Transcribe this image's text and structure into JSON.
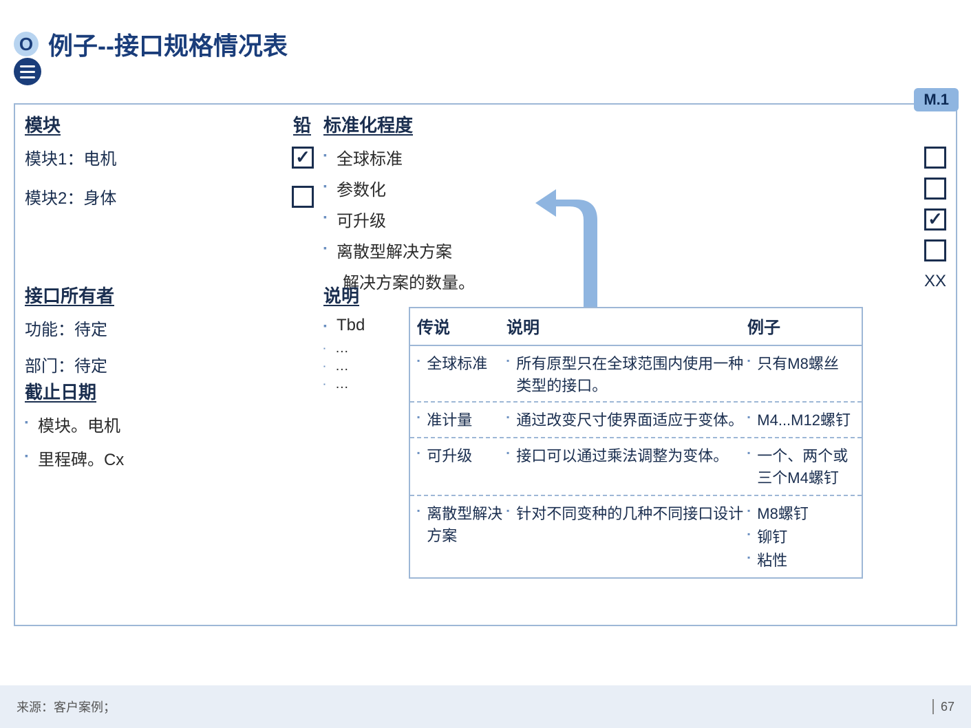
{
  "title": "例子--接口规格情况表",
  "badge_letter": "O",
  "tag": "M.1",
  "left": {
    "hdr_module": "模块",
    "hdr_lead": "铅",
    "modules": [
      {
        "label": "模块1：电机",
        "checked": true
      },
      {
        "label": "模块2：身体",
        "checked": false
      }
    ],
    "owner_hdr": "接口所有者",
    "owner_fn": "功能：待定",
    "owner_dept": "部门：待定",
    "deadline_hdr": "截止日期",
    "deadline_items": [
      "模块。电机",
      "里程碑。Cx"
    ]
  },
  "right": {
    "std_hdr": "标准化程度",
    "std_items": [
      {
        "label": "全球标准",
        "checked": false
      },
      {
        "label": "参数化",
        "checked": false
      },
      {
        "label": "可升级",
        "checked": true
      },
      {
        "label": "离散型解决方案",
        "checked": false
      }
    ],
    "std_extra_label": "解决方案的数量。",
    "std_extra_val": "XX",
    "desc_hdr": "说明",
    "desc_items": [
      "Tbd",
      "…",
      "…",
      "…"
    ]
  },
  "callout": {
    "h1": "传说",
    "h2": "说明",
    "h3": "例子",
    "rows": [
      {
        "t": "全球标准",
        "d": "所有原型只在全球范围内使用一种类型的接口。",
        "e": [
          "只有M8螺丝"
        ]
      },
      {
        "t": "准计量",
        "d": "通过改变尺寸使界面适应于变体。",
        "e": [
          "M4...M12螺钉"
        ]
      },
      {
        "t": "可升级",
        "d": "接口可以通过乘法调整为变体。",
        "e": [
          "一个、两个或三个M4螺钉"
        ]
      },
      {
        "t": "离散型解决方案",
        "d": "针对不同变种的几种不同接口设计",
        "e": [
          "M8螺钉",
          "铆钉",
          "粘性"
        ]
      }
    ]
  },
  "footer": {
    "source": "来源：客户案例；",
    "page": "67"
  },
  "colors": {
    "accent": "#8fb5e0",
    "dark": "#1a3d7a"
  }
}
